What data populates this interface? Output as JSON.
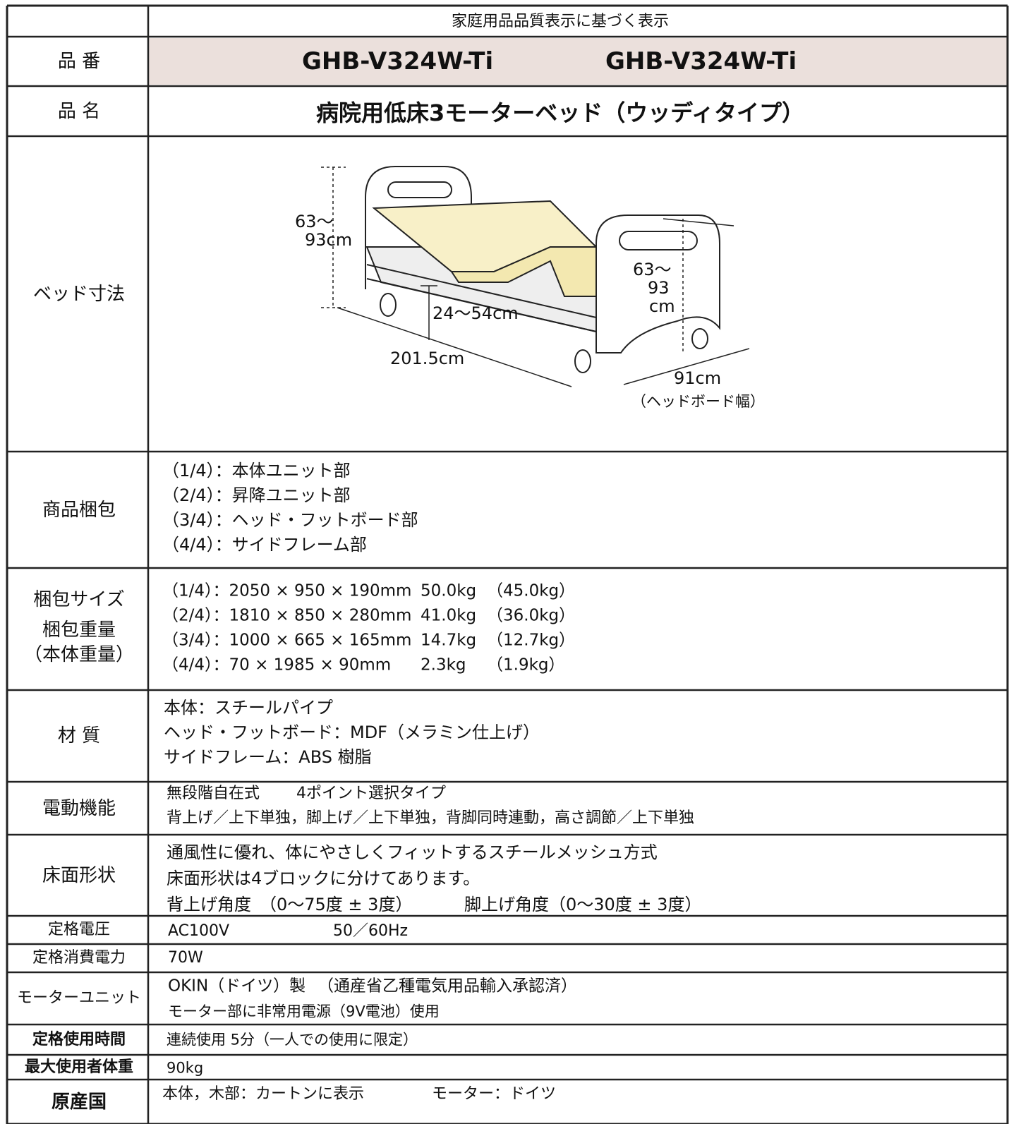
{
  "header": {
    "title": "家庭用品品質表示に基づく表示"
  },
  "rows": [
    {
      "labels": [
        "品 番"
      ],
      "lines": [
        [
          "GHB-V324W-Ti",
          "GHB-V324W-Ti"
        ]
      ]
    },
    {
      "labels": [
        "品 名"
      ],
      "lines": [
        [
          "病院用低床3モーターベッド（ウッディタイプ）"
        ]
      ]
    },
    {
      "labels": [
        "ベッド寸法"
      ],
      "diagram": {
        "head_height": [
          "63～",
          "93cm"
        ],
        "foot_height": [
          "63～",
          "93",
          "cm"
        ],
        "floor_height": "24～54cm",
        "length": "201.5cm",
        "width": "91cm",
        "width_note": "（ヘッドボード幅）"
      }
    },
    {
      "labels": [
        "商品梱包"
      ],
      "lines": [
        [
          "（1/4）：本体ユニット部"
        ],
        [
          "（2/4）：昇降ユニット部"
        ],
        [
          "（3/4）：ヘッド・フットボード部"
        ],
        [
          "（4/4）：サイドフレーム部"
        ]
      ]
    },
    {
      "labels": [
        "梱包サイズ",
        "梱包重量",
        "（本体重量）"
      ],
      "lines": [
        [
          "（1/4）：2050 × 950 × 190mm",
          "50.0kg",
          "（45.0kg）"
        ],
        [
          "（2/4）：1810 × 850 × 280mm",
          "41.0kg",
          "（36.0kg）"
        ],
        [
          "（3/4）：1000 × 665 × 165mm",
          "14.7kg",
          "（12.7kg）"
        ],
        [
          "（4/4）：70 × 1985 × 90mm",
          "2.3kg",
          "（1.9kg）"
        ]
      ]
    },
    {
      "labels": [
        "材 質"
      ],
      "lines": [
        [
          "本体：スチールパイプ"
        ],
        [
          "ヘッド・フットボード：MDF（メラミン仕上げ）"
        ],
        [
          "サイドフレーム：ABS 樹脂"
        ]
      ]
    },
    {
      "labels": [
        "電動機能"
      ],
      "lines": [
        [
          "無段階自在式",
          "4ポイント選択タイプ"
        ],
        [
          "背上げ／上下単独，脚上げ／上下単独，背脚同時連動，高さ調節／上下単独"
        ]
      ]
    },
    {
      "labels": [
        "床面形状"
      ],
      "lines": [
        [
          "通風性に優れ、体にやさしくフィットするスチールメッシュ方式"
        ],
        [
          "床面形状は4ブロックに分けてあります。"
        ],
        [
          "背上げ角度　（0～75度 ± 3度）",
          "脚上げ角度（0～30度 ± 3度）"
        ]
      ]
    },
    {
      "labels": [
        "定格電圧"
      ],
      "lines": [
        [
          "AC100V",
          "50／60Hz"
        ]
      ]
    },
    {
      "labels": [
        "定格消費電力"
      ],
      "lines": [
        [
          "70W"
        ]
      ]
    },
    {
      "labels": [
        "モーターユニット"
      ],
      "lines": [
        [
          "OKIN（ドイツ）製",
          "（通産省乙種電気用品輸入承認済）"
        ],
        [
          "モーター部に非常用電源（9V電池）使用"
        ]
      ]
    },
    {
      "labels": [
        "定格使用時間"
      ],
      "lines": [
        [
          "連続使用 5分（一人での使用に限定）"
        ]
      ]
    },
    {
      "labels": [
        "最大使用者体重"
      ],
      "lines": [
        [
          "90kg"
        ]
      ]
    },
    {
      "labels": [
        "原産国"
      ],
      "lines": [
        [
          "本体，木部：カートンに表示",
          "モーター：ドイツ"
        ]
      ]
    }
  ]
}
